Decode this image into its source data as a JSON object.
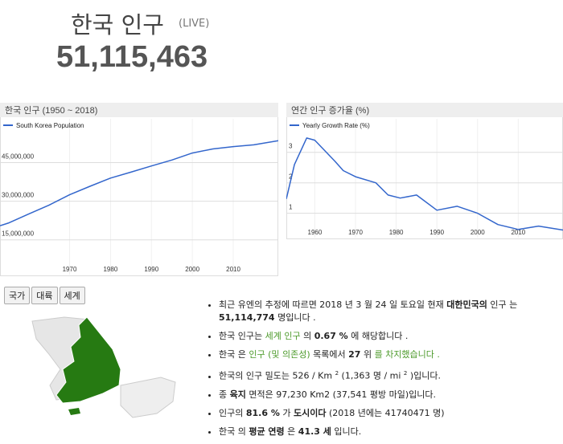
{
  "header": {
    "title": "한국 인구",
    "live": "(LIVE)",
    "counter": "51,115,463"
  },
  "chart_data": [
    {
      "type": "line",
      "title": "한국 인구 (1950 ~ 2018)",
      "x": [
        1953,
        1955,
        1960,
        1965,
        1970,
        1975,
        1980,
        1985,
        1990,
        1995,
        2000,
        2005,
        2010,
        2015,
        2021
      ],
      "series": [
        {
          "name": "South Korea Population",
          "color": "#3366cc",
          "values": [
            20500000,
            21500000,
            25000000,
            28500000,
            32500000,
            35800000,
            39000000,
            41300000,
            43700000,
            46000000,
            48700000,
            50300000,
            51200000,
            51900000,
            53500000
          ]
        }
      ],
      "xlim": [
        1953,
        2021
      ],
      "xticks": [
        1970,
        1980,
        1990,
        2000,
        2010
      ],
      "ylim": [
        1500000,
        62000000
      ],
      "yticks": [
        {
          "value": 15000000,
          "label": "15,000,000"
        },
        {
          "value": 30000000,
          "label": "30,000,000"
        },
        {
          "value": 45000000,
          "label": "45,000,000"
        }
      ],
      "grid": true
    },
    {
      "type": "line",
      "title": "연간 인구 증가율 (%)",
      "x": [
        1953,
        1955,
        1958,
        1960,
        1965,
        1967,
        1970,
        1975,
        1978,
        1981,
        1985,
        1990,
        1995,
        2000,
        2005,
        2010,
        2015,
        2021
      ],
      "series": [
        {
          "name": "Yearly Growth Rate (%)",
          "color": "#3366cc",
          "values": [
            1.47,
            2.6,
            3.47,
            3.4,
            2.7,
            2.4,
            2.2,
            2.0,
            1.6,
            1.5,
            1.6,
            1.1,
            1.23,
            1.0,
            0.63,
            0.47,
            0.58,
            0.45
          ]
        }
      ],
      "xlim": [
        1953,
        2021
      ],
      "xticks": [
        1960,
        1970,
        1980,
        1990,
        2000,
        2010
      ],
      "ylim": [
        0.2,
        4.1
      ],
      "yticks": [
        1,
        2,
        3
      ],
      "grid": true
    }
  ],
  "tabs": [
    "국가",
    "대륙",
    "세계"
  ],
  "facts": [
    [
      {
        "text": "최근 유엔의 추정에 따르면 2018 년 3 월 24 일 토요일 현재 "
      },
      {
        "text": "대한민국의",
        "bold": true
      },
      {
        "text": " 인구 는 "
      },
      {
        "text": "51,114,774",
        "bold": true
      },
      {
        "text": " 명입니다 ."
      }
    ],
    [
      {
        "text": "한국 인구는 "
      },
      {
        "text": "세계 인구",
        "color": "#4c9a2a"
      },
      {
        "text": " 의 "
      },
      {
        "text": "0.67 %",
        "bold": true
      },
      {
        "text": " 에 해당합니다 ."
      }
    ],
    [
      {
        "text": "한국 은 "
      },
      {
        "text": "인구 (및 의존성)",
        "color": "#4c9a2a"
      },
      {
        "text": " 목록에서 "
      },
      {
        "text": "27",
        "bold": true
      },
      {
        "text": " 위 "
      },
      {
        "text": "를 차지했습니다 .",
        "color": "#4c9a2a"
      }
    ],
    [
      {
        "text": "한국의 인구 밀도는 526 / Km "
      },
      {
        "text": "2",
        "sup": true
      },
      {
        "text": " (1,363 명 / mi "
      },
      {
        "text": "2",
        "sup": true
      },
      {
        "text": " )입니다."
      }
    ],
    [
      {
        "text": "종 "
      },
      {
        "text": "육지",
        "bold": true
      },
      {
        "text": " 면적은 97,230 Km2 (37,541 평방 마일)입니다."
      }
    ],
    [
      {
        "text": "인구의 "
      },
      {
        "text": "81.6 %",
        "bold": true
      },
      {
        "text": " 가 "
      },
      {
        "text": "도시이다",
        "bold": true
      },
      {
        "text": " (2018 년에는 41740471 명)"
      }
    ],
    [
      {
        "text": "한국 의 "
      },
      {
        "text": "평균 연령",
        "bold": true
      },
      {
        "text": " 은 "
      },
      {
        "text": "41.3 세",
        "bold": true
      },
      {
        "text": " 입니다."
      }
    ]
  ]
}
